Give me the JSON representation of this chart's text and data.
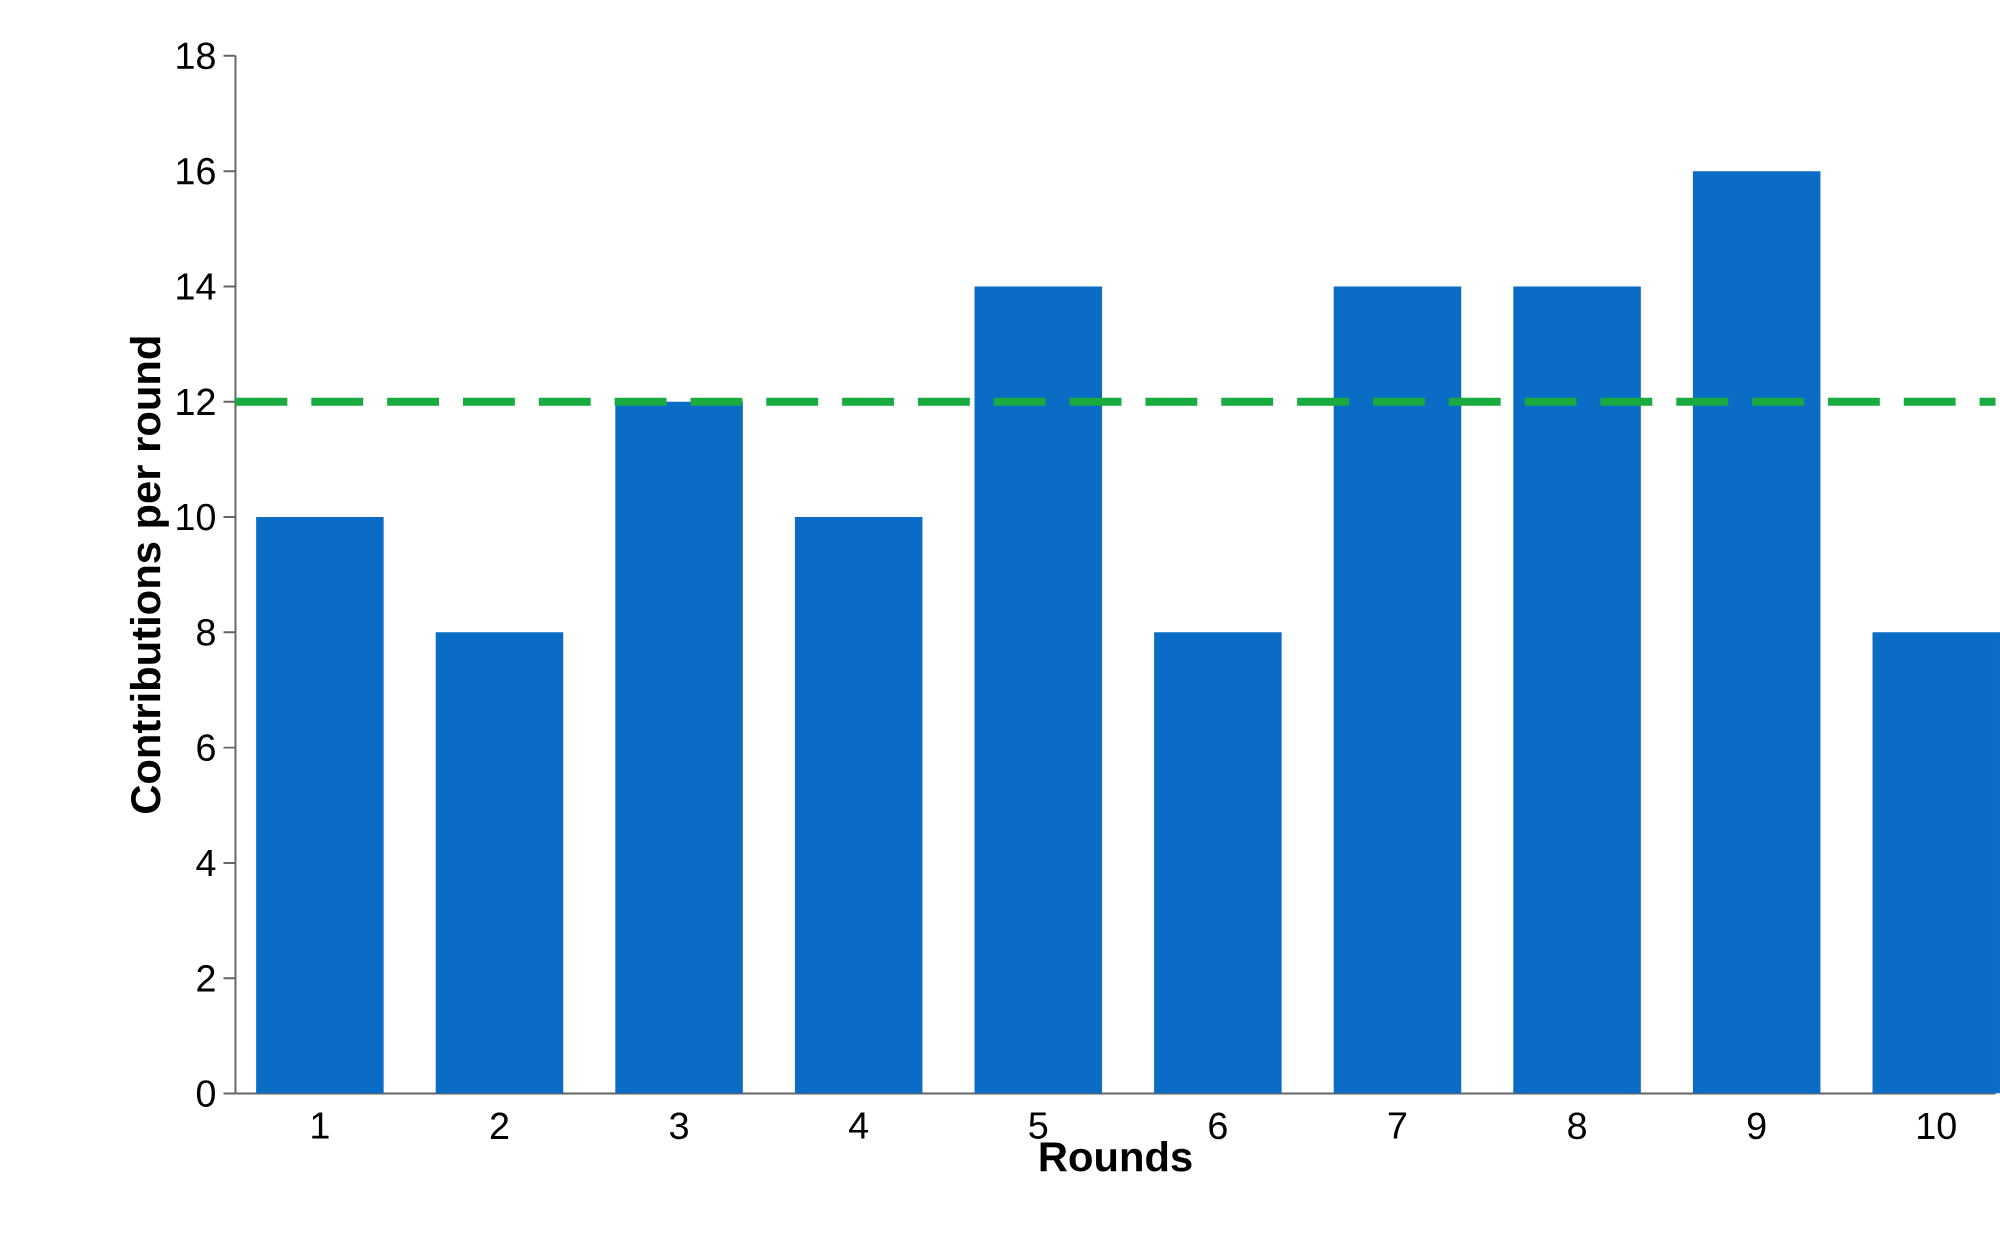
{
  "chart_data": {
    "type": "bar",
    "xlabel": "Rounds",
    "ylabel": "Contributions per round",
    "categories": [
      "1",
      "2",
      "3",
      "4",
      "5",
      "6",
      "7",
      "8",
      "9",
      "10"
    ],
    "values": [
      10,
      8,
      12,
      10,
      14,
      8,
      14,
      14,
      16,
      8
    ],
    "color": "#0a6cc4",
    "ylim": [
      0,
      18
    ],
    "yticks": [
      0,
      2,
      4,
      6,
      8,
      10,
      12,
      14,
      16,
      18
    ],
    "ref_lines": [
      {
        "axis": "y",
        "value": 12,
        "color": "#1aab40",
        "line_style": "dashed"
      }
    ]
  }
}
